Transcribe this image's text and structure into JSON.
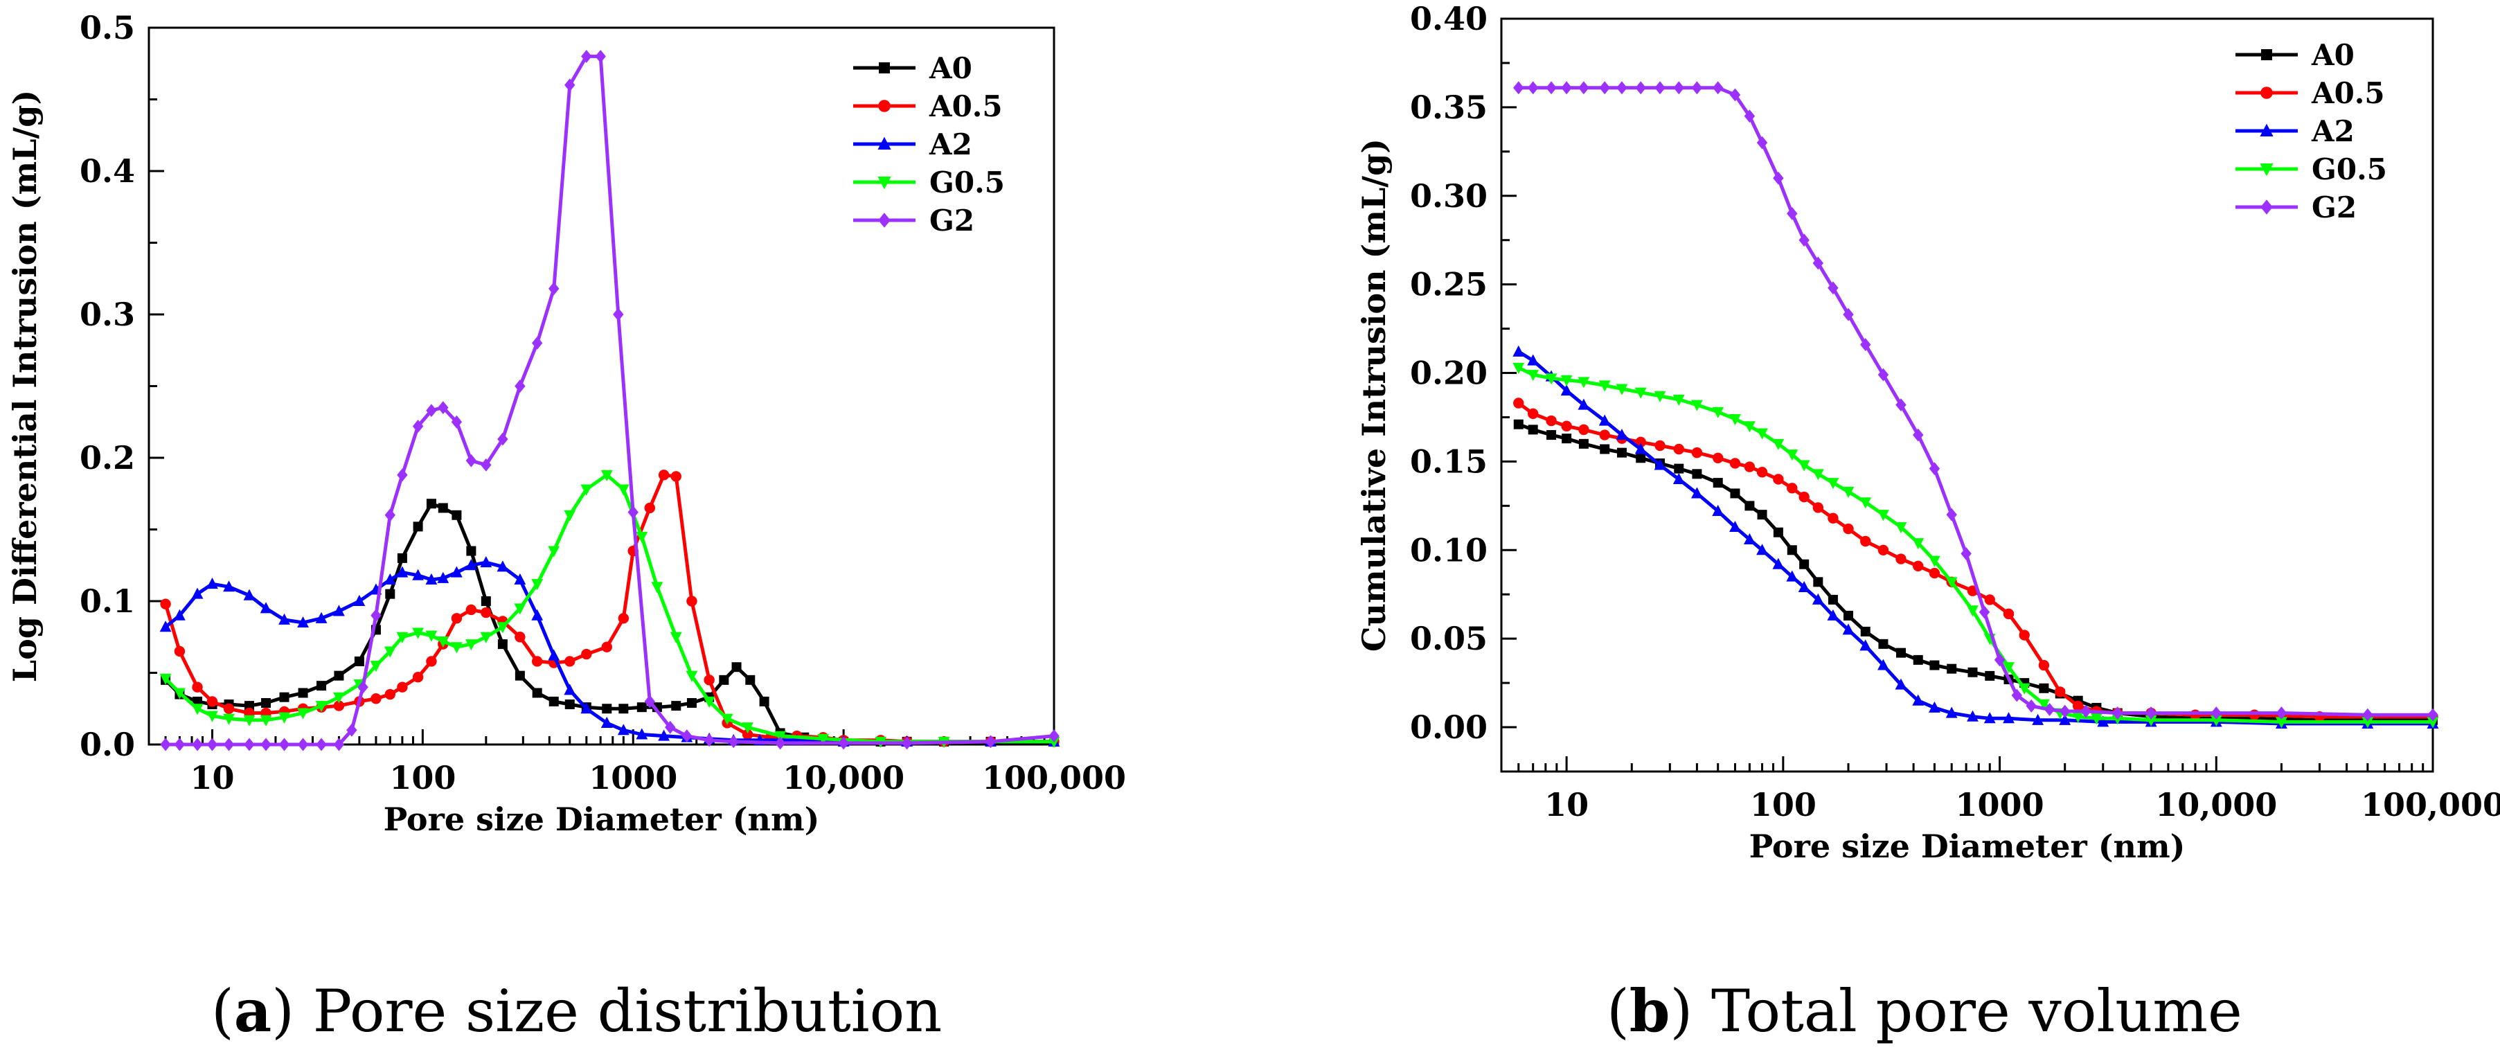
{
  "chart_data": [
    {
      "panel": "a",
      "type": "line",
      "xscale": "log",
      "xlim": [
        5,
        100000
      ],
      "ylim": [
        0,
        0.5
      ],
      "xlabel": "Pore size Diameter (nm)",
      "ylabel": "Log Differential Intrusion (mL/g)",
      "xticks": [
        10,
        100,
        1000,
        10000,
        100000
      ],
      "xtick_labels": [
        "10",
        "100",
        "1000",
        "10,000",
        "100,000"
      ],
      "yticks": [
        0,
        0.1,
        0.2,
        0.3,
        0.4,
        0.5
      ],
      "ytick_labels": [
        "0.0",
        "0.1",
        "0.2",
        "0.3",
        "0.4",
        "0.5"
      ],
      "legend_position": "top-right",
      "caption_letter": "a",
      "caption_text": "Pore size distribution",
      "series": [
        {
          "name": "A0",
          "color": "#000000",
          "marker": "square",
          "x": [
            6,
            7,
            8.5,
            10,
            12,
            15,
            18,
            22,
            27,
            33,
            40,
            50,
            60,
            70,
            80,
            95,
            110,
            125,
            145,
            170,
            200,
            240,
            290,
            350,
            420,
            500,
            600,
            750,
            900,
            1100,
            1300,
            1600,
            1900,
            2300,
            2700,
            3100,
            3600,
            4200,
            5000,
            6500,
            8000,
            10000,
            15000,
            20000,
            30000,
            50000,
            100000
          ],
          "y": [
            0.045,
            0.035,
            0.03,
            0.028,
            0.028,
            0.027,
            0.029,
            0.033,
            0.036,
            0.041,
            0.048,
            0.058,
            0.08,
            0.105,
            0.13,
            0.152,
            0.168,
            0.165,
            0.16,
            0.135,
            0.1,
            0.07,
            0.048,
            0.036,
            0.03,
            0.028,
            0.026,
            0.025,
            0.025,
            0.026,
            0.026,
            0.027,
            0.029,
            0.033,
            0.045,
            0.054,
            0.045,
            0.03,
            0.008,
            0.005,
            0.003,
            0.002,
            0.002,
            0.002,
            0.002,
            0.002,
            0.002
          ]
        },
        {
          "name": "A0.5",
          "color": "#ff0000",
          "marker": "circle",
          "x": [
            6,
            7,
            8.5,
            10,
            12,
            15,
            18,
            22,
            27,
            33,
            40,
            50,
            60,
            70,
            80,
            95,
            110,
            125,
            145,
            170,
            200,
            240,
            290,
            350,
            420,
            500,
            600,
            750,
            900,
            1000,
            1200,
            1400,
            1600,
            1900,
            2300,
            2800,
            3500,
            4500,
            6000,
            8000,
            10000,
            15000,
            20000,
            30000,
            50000,
            100000
          ],
          "y": [
            0.098,
            0.065,
            0.04,
            0.03,
            0.025,
            0.022,
            0.022,
            0.023,
            0.025,
            0.026,
            0.027,
            0.03,
            0.032,
            0.035,
            0.04,
            0.047,
            0.058,
            0.07,
            0.088,
            0.094,
            0.092,
            0.086,
            0.075,
            0.058,
            0.057,
            0.058,
            0.063,
            0.068,
            0.088,
            0.135,
            0.165,
            0.188,
            0.187,
            0.1,
            0.045,
            0.015,
            0.007,
            0.005,
            0.006,
            0.005,
            0.003,
            0.003,
            0.002,
            0.002,
            0.002,
            0.002
          ]
        },
        {
          "name": "A2",
          "color": "#0000ff",
          "marker": "triangle",
          "x": [
            6,
            7,
            8.5,
            10,
            12,
            15,
            18,
            22,
            27,
            33,
            40,
            50,
            60,
            70,
            80,
            95,
            110,
            125,
            145,
            170,
            200,
            240,
            290,
            350,
            420,
            500,
            600,
            750,
            900,
            1100,
            1400,
            1800,
            2300,
            3000,
            4000,
            6000,
            10000,
            20000,
            50000,
            100000
          ],
          "y": [
            0.082,
            0.09,
            0.105,
            0.112,
            0.11,
            0.104,
            0.095,
            0.087,
            0.085,
            0.088,
            0.093,
            0.1,
            0.108,
            0.115,
            0.12,
            0.118,
            0.115,
            0.116,
            0.12,
            0.125,
            0.127,
            0.124,
            0.115,
            0.09,
            0.062,
            0.038,
            0.025,
            0.015,
            0.01,
            0.007,
            0.006,
            0.005,
            0.004,
            0.003,
            0.003,
            0.003,
            0.002,
            0.002,
            0.002,
            0.002
          ]
        },
        {
          "name": "G0.5",
          "color": "#00ff00",
          "marker": "triangle-down",
          "x": [
            6,
            7,
            8.5,
            10,
            12,
            15,
            18,
            22,
            27,
            33,
            40,
            50,
            60,
            70,
            80,
            95,
            110,
            125,
            145,
            170,
            200,
            240,
            290,
            350,
            420,
            500,
            600,
            750,
            900,
            1100,
            1300,
            1600,
            1900,
            2300,
            2800,
            3500,
            5000,
            8000,
            15000,
            30000,
            100000
          ],
          "y": [
            0.046,
            0.036,
            0.025,
            0.02,
            0.018,
            0.017,
            0.017,
            0.019,
            0.022,
            0.027,
            0.033,
            0.042,
            0.055,
            0.065,
            0.075,
            0.078,
            0.076,
            0.072,
            0.068,
            0.07,
            0.075,
            0.082,
            0.095,
            0.112,
            0.135,
            0.16,
            0.178,
            0.188,
            0.178,
            0.145,
            0.11,
            0.075,
            0.048,
            0.03,
            0.018,
            0.012,
            0.006,
            0.004,
            0.002,
            0.002,
            0.002
          ]
        },
        {
          "name": "G2",
          "color": "#9b30ff",
          "marker": "diamond",
          "x": [
            6,
            7,
            8.5,
            10,
            12,
            15,
            18,
            22,
            27,
            33,
            40,
            46,
            52,
            60,
            70,
            80,
            95,
            110,
            125,
            145,
            170,
            200,
            240,
            290,
            350,
            420,
            500,
            600,
            700,
            850,
            1000,
            1200,
            1500,
            1800,
            2300,
            3000,
            5000,
            10000,
            20000,
            50000,
            100000
          ],
          "y": [
            0,
            0,
            0,
            0,
            0,
            0,
            0,
            0,
            0,
            0,
            0,
            0.01,
            0.04,
            0.09,
            0.16,
            0.188,
            0.222,
            0.233,
            0.235,
            0.225,
            0.198,
            0.195,
            0.213,
            0.25,
            0.28,
            0.318,
            0.46,
            0.48,
            0.48,
            0.3,
            0.162,
            0.03,
            0.012,
            0.006,
            0.003,
            0.002,
            0.001,
            0.001,
            0.001,
            0.002,
            0.006
          ]
        }
      ]
    },
    {
      "panel": "b",
      "type": "line",
      "xscale": "log",
      "xlim": [
        5,
        100000
      ],
      "ylim": [
        -0.025,
        0.4
      ],
      "xlabel": "Pore size Diameter (nm)",
      "ylabel": "Cumulative Intrusion (mL/g)",
      "xticks": [
        10,
        100,
        1000,
        10000,
        100000
      ],
      "xtick_labels": [
        "10",
        "100",
        "1000",
        "10,000",
        "100,000"
      ],
      "yticks": [
        0,
        0.05,
        0.1,
        0.15,
        0.2,
        0.25,
        0.3,
        0.35,
        0.4
      ],
      "ytick_labels": [
        "0.00",
        "0.05",
        "0.10",
        "0.15",
        "0.20",
        "0.25",
        "0.30",
        "0.35",
        "0.40"
      ],
      "legend_position": "top-right",
      "caption_letter": "b",
      "caption_text": "Total pore volume",
      "series": [
        {
          "name": "A0",
          "color": "#000000",
          "marker": "square",
          "x": [
            6,
            7,
            8.5,
            10,
            12,
            15,
            18,
            22,
            27,
            33,
            40,
            50,
            60,
            70,
            80,
            95,
            110,
            125,
            145,
            170,
            200,
            240,
            290,
            350,
            420,
            500,
            600,
            750,
            900,
            1100,
            1300,
            1600,
            1900,
            2300,
            2800,
            3500,
            5000,
            8000,
            15000,
            30000,
            100000
          ],
          "y": [
            0.171,
            0.168,
            0.165,
            0.163,
            0.16,
            0.157,
            0.155,
            0.152,
            0.149,
            0.146,
            0.143,
            0.138,
            0.132,
            0.125,
            0.12,
            0.11,
            0.1,
            0.092,
            0.082,
            0.072,
            0.063,
            0.054,
            0.047,
            0.042,
            0.038,
            0.035,
            0.033,
            0.031,
            0.029,
            0.027,
            0.025,
            0.022,
            0.019,
            0.015,
            0.011,
            0.008,
            0.006,
            0.005,
            0.005,
            0.004,
            0.004
          ]
        },
        {
          "name": "A0.5",
          "color": "#ff0000",
          "marker": "circle",
          "x": [
            6,
            7,
            8.5,
            10,
            12,
            15,
            18,
            22,
            27,
            33,
            40,
            50,
            60,
            70,
            80,
            95,
            110,
            125,
            145,
            170,
            200,
            240,
            290,
            350,
            420,
            500,
            600,
            750,
            900,
            1100,
            1300,
            1600,
            1900,
            2300,
            2800,
            3500,
            5000,
            8000,
            15000,
            30000,
            100000
          ],
          "y": [
            0.183,
            0.177,
            0.173,
            0.17,
            0.168,
            0.165,
            0.163,
            0.161,
            0.159,
            0.157,
            0.155,
            0.152,
            0.149,
            0.147,
            0.144,
            0.14,
            0.135,
            0.13,
            0.124,
            0.118,
            0.112,
            0.105,
            0.1,
            0.095,
            0.091,
            0.087,
            0.082,
            0.077,
            0.072,
            0.064,
            0.052,
            0.035,
            0.02,
            0.012,
            0.009,
            0.008,
            0.008,
            0.007,
            0.007,
            0.006,
            0.006
          ]
        },
        {
          "name": "A2",
          "color": "#0000ff",
          "marker": "triangle",
          "x": [
            6,
            7,
            8.5,
            10,
            12,
            15,
            18,
            22,
            27,
            33,
            40,
            50,
            60,
            70,
            80,
            95,
            110,
            125,
            145,
            170,
            200,
            240,
            290,
            350,
            420,
            500,
            600,
            750,
            900,
            1100,
            1500,
            2000,
            3000,
            5000,
            10000,
            20000,
            50000,
            100000
          ],
          "y": [
            0.212,
            0.207,
            0.198,
            0.19,
            0.182,
            0.173,
            0.165,
            0.157,
            0.148,
            0.14,
            0.132,
            0.122,
            0.113,
            0.106,
            0.1,
            0.092,
            0.085,
            0.079,
            0.072,
            0.063,
            0.055,
            0.046,
            0.035,
            0.024,
            0.015,
            0.011,
            0.008,
            0.006,
            0.005,
            0.005,
            0.004,
            0.004,
            0.003,
            0.003,
            0.003,
            0.002,
            0.002,
            0.002
          ]
        },
        {
          "name": "G0.5",
          "color": "#00ff00",
          "marker": "triangle-down",
          "x": [
            6,
            7,
            8.5,
            10,
            12,
            15,
            18,
            22,
            27,
            33,
            40,
            50,
            60,
            70,
            80,
            95,
            110,
            125,
            145,
            170,
            200,
            240,
            290,
            350,
            420,
            500,
            600,
            750,
            900,
            1100,
            1300,
            1600,
            1900,
            2300,
            2800,
            3500,
            5000,
            10000,
            20000,
            50000,
            100000
          ],
          "y": [
            0.203,
            0.199,
            0.197,
            0.196,
            0.195,
            0.193,
            0.191,
            0.189,
            0.187,
            0.185,
            0.182,
            0.178,
            0.174,
            0.17,
            0.166,
            0.16,
            0.154,
            0.148,
            0.143,
            0.138,
            0.133,
            0.127,
            0.12,
            0.113,
            0.104,
            0.094,
            0.082,
            0.066,
            0.05,
            0.034,
            0.022,
            0.013,
            0.008,
            0.006,
            0.005,
            0.005,
            0.004,
            0.004,
            0.003,
            0.003,
            0.003
          ]
        },
        {
          "name": "G2",
          "color": "#9b30ff",
          "marker": "diamond",
          "x": [
            6,
            7,
            8.5,
            10,
            12,
            15,
            18,
            22,
            27,
            33,
            40,
            50,
            60,
            70,
            80,
            95,
            110,
            125,
            145,
            170,
            200,
            240,
            290,
            350,
            420,
            500,
            600,
            700,
            850,
            1000,
            1200,
            1400,
            1700,
            2000,
            2500,
            3500,
            5000,
            10000,
            20000,
            50000,
            100000
          ],
          "y": [
            0.361,
            0.361,
            0.361,
            0.361,
            0.361,
            0.361,
            0.361,
            0.361,
            0.361,
            0.361,
            0.361,
            0.361,
            0.357,
            0.345,
            0.33,
            0.31,
            0.29,
            0.275,
            0.262,
            0.248,
            0.233,
            0.216,
            0.199,
            0.182,
            0.165,
            0.146,
            0.12,
            0.098,
            0.065,
            0.038,
            0.018,
            0.012,
            0.01,
            0.009,
            0.009,
            0.008,
            0.008,
            0.008,
            0.008,
            0.007,
            0.007
          ]
        }
      ]
    }
  ]
}
